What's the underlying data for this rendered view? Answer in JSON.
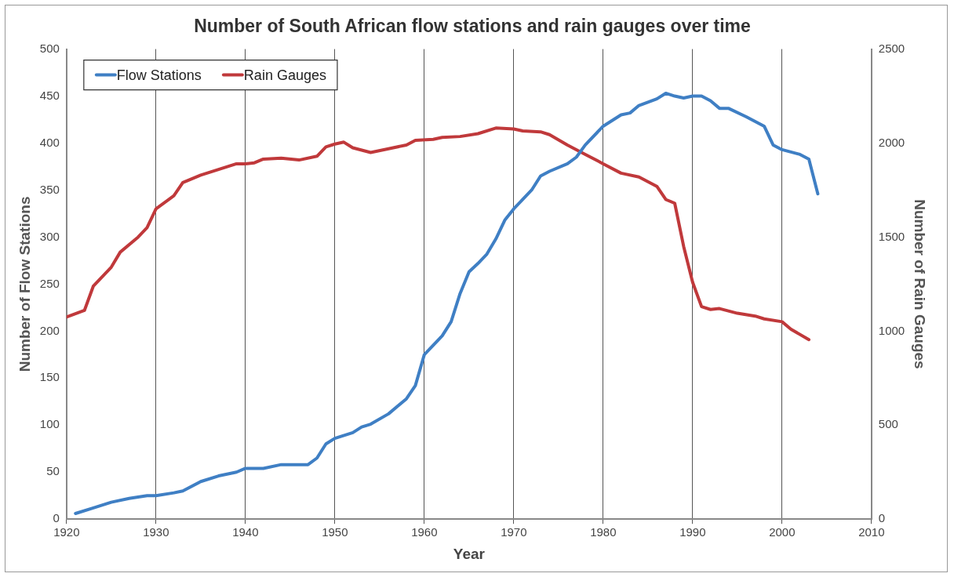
{
  "chart_data": {
    "type": "line",
    "title": "Number of South African flow stations and rain gauges over time",
    "xlabel": "Year",
    "ylabel": "Number of Flow Stations",
    "y2label": "Number of Rain Gauges",
    "xlim": [
      1920,
      2010
    ],
    "xticks": [
      1920,
      1930,
      1940,
      1950,
      1960,
      1970,
      1980,
      1990,
      2000,
      2010
    ],
    "ylim": [
      0,
      500
    ],
    "yticks": [
      0,
      50,
      100,
      150,
      200,
      250,
      300,
      350,
      400,
      450,
      500
    ],
    "y2lim": [
      0,
      2500
    ],
    "y2ticks": [
      0,
      500,
      1000,
      1500,
      2000,
      2500
    ],
    "grid": "x",
    "legend": "top left",
    "marker": "none",
    "line_style": "solid",
    "series": [
      {
        "name": "Flow Stations",
        "color": "#3f7fc4",
        "x": [
          1921,
          1923,
          1925,
          1927,
          1929,
          1930,
          1932,
          1933,
          1935,
          1937,
          1939,
          1940,
          1942,
          1944,
          1947,
          1948,
          1949,
          1950,
          1952,
          1953,
          1954,
          1956,
          1958,
          1959,
          1960,
          1962,
          1963,
          1964,
          1965,
          1966,
          1967,
          1968,
          1969,
          1970,
          1971,
          1972,
          1973,
          1974,
          1976,
          1977,
          1978,
          1980,
          1982,
          1983,
          1984,
          1986,
          1987,
          1988,
          1989,
          1990,
          1991,
          1992,
          1993,
          1994,
          1996,
          1998,
          1999,
          2000,
          2002,
          2003,
          2004
        ],
        "values": [
          6,
          12,
          18,
          22,
          25,
          25,
          28,
          30,
          40,
          46,
          50,
          54,
          54,
          58,
          58,
          65,
          80,
          86,
          92,
          98,
          101,
          112,
          128,
          142,
          175,
          195,
          210,
          240,
          263,
          272,
          282,
          298,
          318,
          330,
          340,
          350,
          365,
          370,
          378,
          385,
          398,
          418,
          430,
          432,
          440,
          447,
          453,
          450,
          448,
          450,
          450,
          445,
          437,
          437,
          428,
          418,
          398,
          393,
          388,
          383,
          346
        ]
      },
      {
        "name": "Rain Gauges",
        "color": "#c0393b",
        "axis": "y2",
        "x": [
          1920,
          1922,
          1923,
          1924,
          1925,
          1926,
          1928,
          1929,
          1930,
          1932,
          1933,
          1935,
          1937,
          1939,
          1940,
          1941,
          1942,
          1944,
          1946,
          1948,
          1949,
          1950,
          1951,
          1952,
          1954,
          1956,
          1958,
          1959,
          1961,
          1962,
          1964,
          1966,
          1968,
          1970,
          1971,
          1973,
          1974,
          1976,
          1978,
          1980,
          1982,
          1984,
          1986,
          1987,
          1988,
          1989,
          1990,
          1991,
          1992,
          1993,
          1995,
          1997,
          1998,
          2000,
          2001,
          2003
        ],
        "values": [
          1075,
          1110,
          1240,
          1290,
          1340,
          1420,
          1500,
          1550,
          1650,
          1720,
          1790,
          1830,
          1860,
          1890,
          1890,
          1895,
          1915,
          1920,
          1910,
          1930,
          1980,
          1995,
          2005,
          1975,
          1950,
          1970,
          1990,
          2015,
          2020,
          2030,
          2035,
          2050,
          2080,
          2075,
          2065,
          2060,
          2045,
          1990,
          1940,
          1890,
          1840,
          1820,
          1770,
          1700,
          1680,
          1450,
          1260,
          1130,
          1115,
          1120,
          1095,
          1080,
          1065,
          1050,
          1010,
          955
        ]
      }
    ]
  }
}
